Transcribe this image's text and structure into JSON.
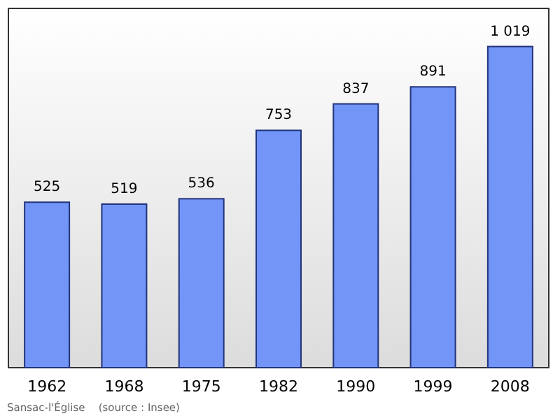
{
  "chart_data": {
    "type": "bar",
    "categories": [
      "1962",
      "1968",
      "1975",
      "1982",
      "1990",
      "1999",
      "2008"
    ],
    "values": [
      525,
      519,
      536,
      753,
      837,
      891,
      1019
    ],
    "value_labels": [
      "525",
      "519",
      "536",
      "753",
      "837",
      "891",
      "1 019"
    ],
    "color": "#7295f7",
    "ylim": [
      0,
      1140
    ],
    "tick_labels": "x",
    "grid": false,
    "annotations": [
      "Sansac-l'Église    (source : Insee)"
    ]
  }
}
